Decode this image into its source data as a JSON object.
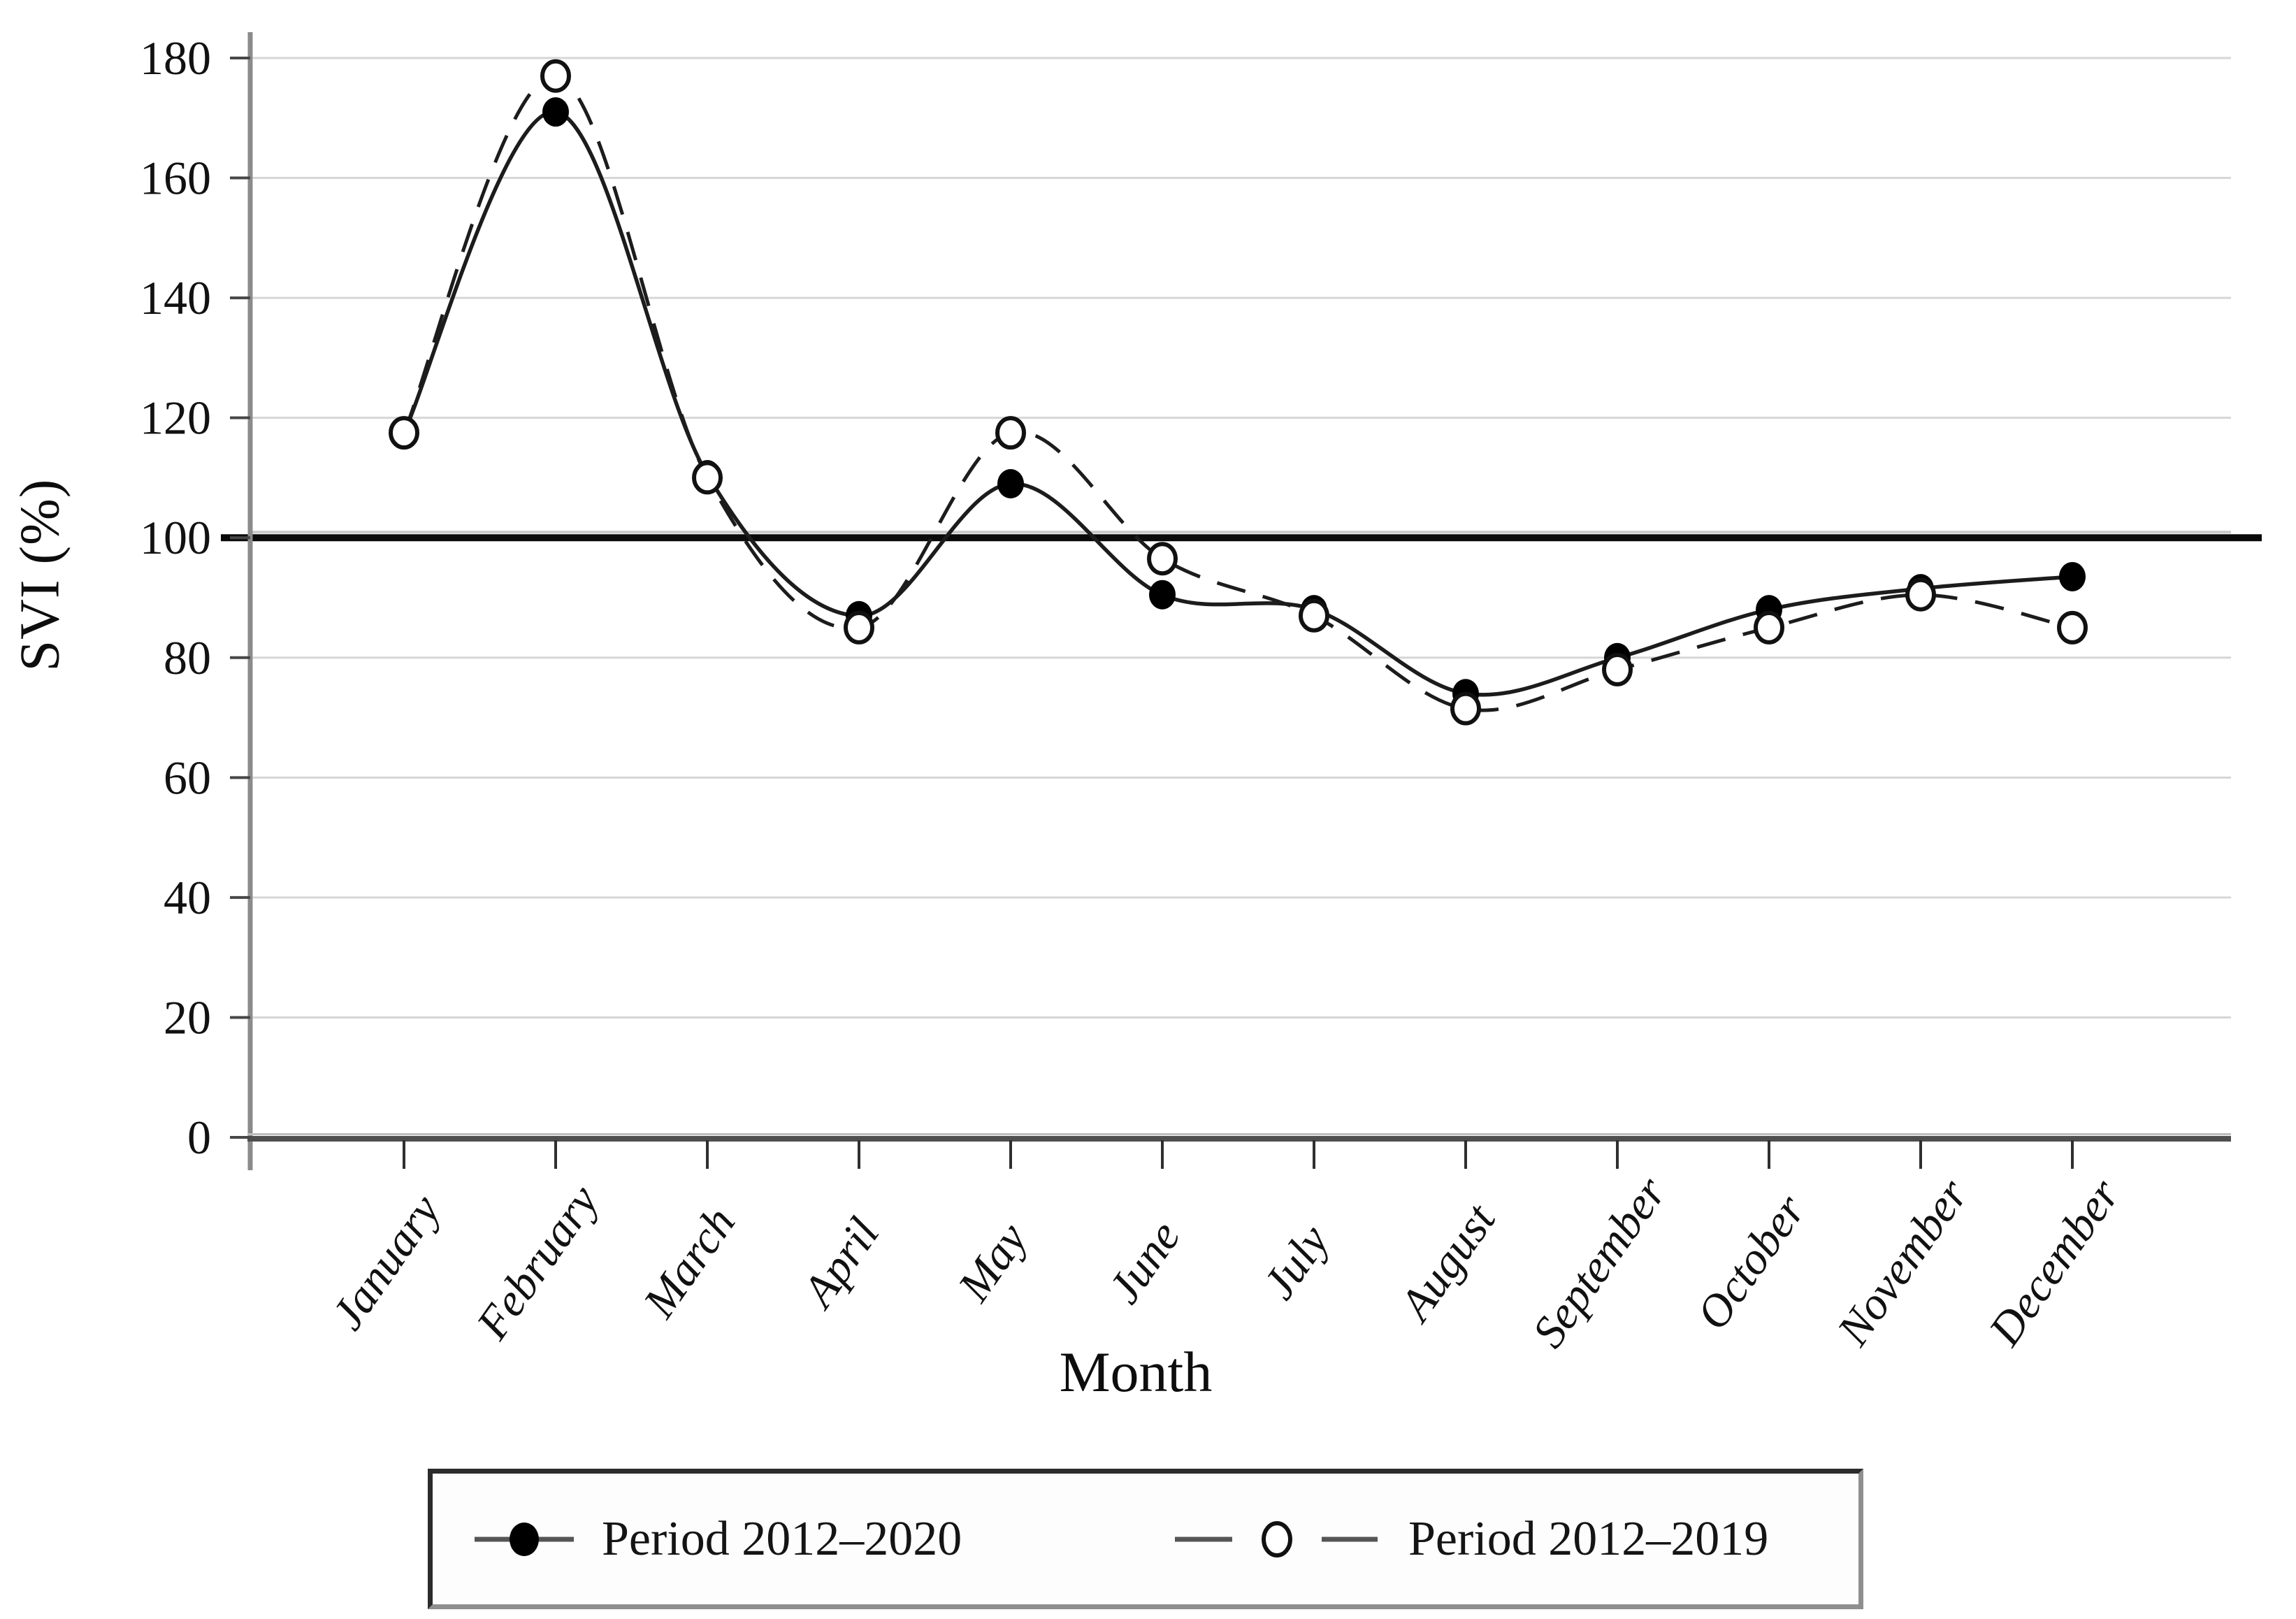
{
  "figure": {
    "y_axis_title": "SVI (%)",
    "x_axis_title": "Month"
  },
  "legend": {
    "items": [
      {
        "label": "Period 2012–2020",
        "marker": "filled-circle",
        "line_style": "solid"
      },
      {
        "label": "Period 2012–2019",
        "marker": "open-circle",
        "line_style": "dashed"
      }
    ]
  },
  "chart_data": {
    "type": "line",
    "title": "",
    "xlabel": "Month",
    "ylabel": "SVI (%)",
    "categories": [
      "January",
      "February",
      "March",
      "April",
      "May",
      "June",
      "July",
      "August",
      "September",
      "October",
      "November",
      "December"
    ],
    "series": [
      {
        "name": "Period 2012–2020",
        "marker": "filled",
        "line_style": "solid",
        "values": [
          117.5,
          171,
          110.5,
          87,
          109,
          90.5,
          88,
          74,
          80,
          88,
          91.5,
          93.5
        ]
      },
      {
        "name": "Period 2012–2019",
        "marker": "open",
        "line_style": "dashed",
        "values": [
          117.5,
          177,
          110,
          85,
          117.5,
          96.5,
          87,
          71.5,
          78,
          85,
          90.5,
          85
        ]
      }
    ],
    "ylim": [
      0,
      180
    ],
    "yticks": [
      0,
      20,
      40,
      60,
      80,
      100,
      120,
      140,
      160,
      180
    ],
    "reference_line": 100,
    "grid": true,
    "legend_position": "bottom",
    "line_smoothing": true,
    "colors": {
      "series_line": "#1c1c1c",
      "marker_fill": "#000000",
      "marker_open_fill": "#ffffff",
      "gridline": "#d6d6d6",
      "axis": "#8b8b8b",
      "reference_line": "#0a0a0a",
      "text": "#111111"
    }
  }
}
